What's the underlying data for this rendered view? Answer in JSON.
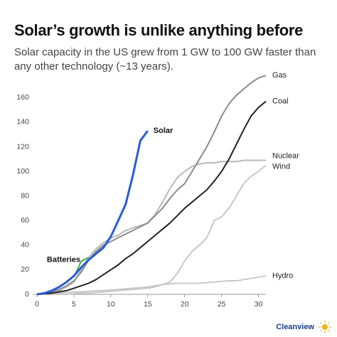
{
  "chart_data": {
    "type": "line",
    "title": "Solar’s growth is unlike anything before",
    "subtitle": "Solar capacity in the US grew from 1 GW to 100 GW faster than any other technology (~13 years).",
    "x": [
      0,
      1,
      2,
      3,
      4,
      5,
      6,
      7,
      8,
      9,
      10,
      11,
      12,
      13,
      14,
      15,
      16,
      17,
      18,
      19,
      20,
      21,
      22,
      23,
      24,
      25,
      26,
      27,
      28,
      29,
      30,
      31
    ],
    "xlim": [
      0,
      31
    ],
    "xticks": [
      0,
      5,
      10,
      15,
      20,
      25,
      30
    ],
    "ylim": [
      0,
      170
    ],
    "yticks": [
      0,
      20,
      40,
      60,
      80,
      100,
      120,
      140,
      160
    ],
    "grid": false,
    "series": [
      {
        "name": "Hydro",
        "color": "#c8c8c8",
        "values": [
          0,
          0.5,
          1,
          1,
          1.5,
          2,
          2,
          2.5,
          3,
          3,
          3.5,
          4,
          4.5,
          5,
          5.5,
          6,
          7,
          8,
          8.5,
          9,
          9,
          9,
          9,
          9.5,
          10,
          10.5,
          11,
          11,
          12,
          13,
          14,
          15
        ]
      },
      {
        "name": "Wind",
        "color": "#c8c8c8",
        "values": [
          0,
          0,
          0,
          0,
          0,
          0.5,
          1,
          1,
          1.5,
          2,
          2.5,
          3,
          3.5,
          4,
          4.5,
          5,
          6,
          8,
          10,
          17,
          27,
          35,
          40,
          46,
          60,
          63,
          70,
          80,
          90,
          96,
          100,
          105
        ]
      },
      {
        "name": "Nuclear",
        "color": "#b8b8b8",
        "values": [
          0,
          0.5,
          1,
          3,
          6,
          10,
          20,
          30,
          37,
          42,
          46,
          48,
          52,
          54,
          56,
          58,
          65,
          75,
          86,
          95,
          100,
          104,
          106,
          107,
          107,
          108,
          108,
          108,
          109,
          109,
          109,
          109
        ]
      },
      {
        "name": "Gas",
        "color": "#8c8c8c",
        "values": [
          0,
          1,
          2,
          4,
          7,
          11,
          18,
          28,
          35,
          40,
          43,
          46,
          49,
          52,
          55,
          58,
          64,
          70,
          78,
          85,
          90,
          100,
          110,
          120,
          132,
          145,
          155,
          162,
          167,
          172,
          176,
          178
        ]
      },
      {
        "name": "Coal",
        "color": "#222222",
        "values": [
          0,
          0.5,
          1,
          2,
          3,
          5,
          7,
          9,
          12,
          16,
          20,
          24,
          29,
          33,
          38,
          43,
          48,
          53,
          58,
          64,
          70,
          75,
          80,
          85,
          92,
          100,
          110,
          122,
          134,
          145,
          152,
          157
        ]
      },
      {
        "name": "Batteries",
        "color": "#3cb44b",
        "values": [
          null,
          null,
          null,
          null,
          null,
          14,
          27,
          30,
          null,
          null,
          null,
          null,
          null,
          null,
          null,
          null,
          null,
          null,
          null,
          null,
          null,
          null,
          null,
          null,
          null,
          null,
          null,
          null,
          null,
          null,
          null,
          null
        ]
      },
      {
        "name": "Solar",
        "color": "#2a5bd7",
        "values": [
          0,
          1,
          3,
          6,
          10,
          15,
          22,
          28,
          33,
          38,
          47,
          60,
          73,
          97,
          125,
          133,
          null,
          null,
          null,
          null,
          null,
          null,
          null,
          null,
          null,
          null,
          null,
          null,
          null,
          null,
          null,
          null
        ]
      }
    ],
    "footer": "Cleanview"
  }
}
